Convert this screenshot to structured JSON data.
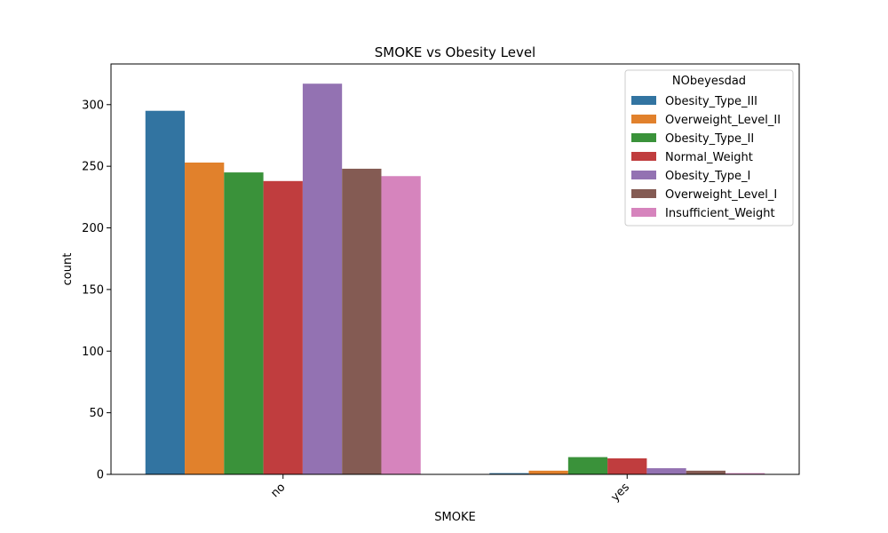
{
  "chart_data": {
    "type": "bar",
    "title": "SMOKE vs Obesity Level",
    "xlabel": "SMOKE",
    "ylabel": "count",
    "categories": [
      "no",
      "yes"
    ],
    "ylim": [
      0,
      333
    ],
    "yticks": [
      0,
      50,
      100,
      150,
      200,
      250,
      300
    ],
    "grid": false,
    "legend": {
      "title": "NObeyesdad",
      "placement": "top-right"
    },
    "series": [
      {
        "name": "Obesity_Type_III",
        "color": "#3274a1",
        "values": [
          295,
          1
        ]
      },
      {
        "name": "Overweight_Level_II",
        "color": "#e1812c",
        "values": [
          253,
          3
        ]
      },
      {
        "name": "Obesity_Type_II",
        "color": "#3a923a",
        "values": [
          245,
          14
        ]
      },
      {
        "name": "Normal_Weight",
        "color": "#c03d3e",
        "values": [
          238,
          13
        ]
      },
      {
        "name": "Obesity_Type_I",
        "color": "#9372b2",
        "values": [
          317,
          5
        ]
      },
      {
        "name": "Overweight_Level_I",
        "color": "#845b53",
        "values": [
          248,
          3
        ]
      },
      {
        "name": "Insufficient_Weight",
        "color": "#d684bd",
        "values": [
          242,
          1
        ]
      }
    ]
  }
}
